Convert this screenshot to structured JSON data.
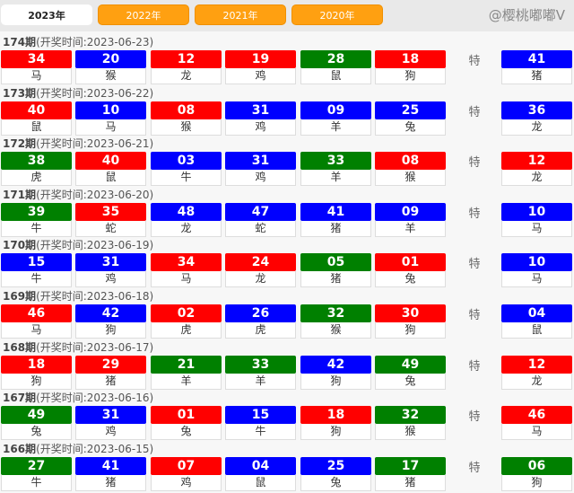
{
  "tabs": [
    "2023年",
    "2022年",
    "2021年",
    "2020年"
  ],
  "active_tab": 0,
  "colors": {
    "red": "#ff0000",
    "blue": "#0000ff",
    "green": "#008000",
    "tab": "#ffa011"
  },
  "special_label": "特",
  "watermark": "@樱桃嘟嘟V",
  "draws": [
    {
      "issue": "174期",
      "time": "(开奖时间:2023-06-23)",
      "balls": [
        [
          "34",
          "red",
          "马"
        ],
        [
          "20",
          "blue",
          "猴"
        ],
        [
          "12",
          "red",
          "龙"
        ],
        [
          "19",
          "red",
          "鸡"
        ],
        [
          "28",
          "green",
          "鼠"
        ],
        [
          "18",
          "red",
          "狗"
        ]
      ],
      "special": [
        "41",
        "blue",
        "猪"
      ]
    },
    {
      "issue": "173期",
      "time": "(开奖时间:2023-06-22)",
      "balls": [
        [
          "40",
          "red",
          "鼠"
        ],
        [
          "10",
          "blue",
          "马"
        ],
        [
          "08",
          "red",
          "猴"
        ],
        [
          "31",
          "blue",
          "鸡"
        ],
        [
          "09",
          "blue",
          "羊"
        ],
        [
          "25",
          "blue",
          "兔"
        ]
      ],
      "special": [
        "36",
        "blue",
        "龙"
      ]
    },
    {
      "issue": "172期",
      "time": "(开奖时间:2023-06-21)",
      "balls": [
        [
          "38",
          "green",
          "虎"
        ],
        [
          "40",
          "red",
          "鼠"
        ],
        [
          "03",
          "blue",
          "牛"
        ],
        [
          "31",
          "blue",
          "鸡"
        ],
        [
          "33",
          "green",
          "羊"
        ],
        [
          "08",
          "red",
          "猴"
        ]
      ],
      "special": [
        "12",
        "red",
        "龙"
      ]
    },
    {
      "issue": "171期",
      "time": "(开奖时间:2023-06-20)",
      "balls": [
        [
          "39",
          "green",
          "牛"
        ],
        [
          "35",
          "red",
          "蛇"
        ],
        [
          "48",
          "blue",
          "龙"
        ],
        [
          "47",
          "blue",
          "蛇"
        ],
        [
          "41",
          "blue",
          "猪"
        ],
        [
          "09",
          "blue",
          "羊"
        ]
      ],
      "special": [
        "10",
        "blue",
        "马"
      ]
    },
    {
      "issue": "170期",
      "time": "(开奖时间:2023-06-19)",
      "balls": [
        [
          "15",
          "blue",
          "牛"
        ],
        [
          "31",
          "blue",
          "鸡"
        ],
        [
          "34",
          "red",
          "马"
        ],
        [
          "24",
          "red",
          "龙"
        ],
        [
          "05",
          "green",
          "猪"
        ],
        [
          "01",
          "red",
          "兔"
        ]
      ],
      "special": [
        "10",
        "blue",
        "马"
      ]
    },
    {
      "issue": "169期",
      "time": "(开奖时间:2023-06-18)",
      "balls": [
        [
          "46",
          "red",
          "马"
        ],
        [
          "42",
          "blue",
          "狗"
        ],
        [
          "02",
          "red",
          "虎"
        ],
        [
          "26",
          "blue",
          "虎"
        ],
        [
          "32",
          "green",
          "猴"
        ],
        [
          "30",
          "red",
          "狗"
        ]
      ],
      "special": [
        "04",
        "blue",
        "鼠"
      ]
    },
    {
      "issue": "168期",
      "time": "(开奖时间:2023-06-17)",
      "balls": [
        [
          "18",
          "red",
          "狗"
        ],
        [
          "29",
          "red",
          "猪"
        ],
        [
          "21",
          "green",
          "羊"
        ],
        [
          "33",
          "green",
          "羊"
        ],
        [
          "42",
          "blue",
          "狗"
        ],
        [
          "49",
          "green",
          "兔"
        ]
      ],
      "special": [
        "12",
        "red",
        "龙"
      ]
    },
    {
      "issue": "167期",
      "time": "(开奖时间:2023-06-16)",
      "balls": [
        [
          "49",
          "green",
          "兔"
        ],
        [
          "31",
          "blue",
          "鸡"
        ],
        [
          "01",
          "red",
          "兔"
        ],
        [
          "15",
          "blue",
          "牛"
        ],
        [
          "18",
          "red",
          "狗"
        ],
        [
          "32",
          "green",
          "猴"
        ]
      ],
      "special": [
        "46",
        "red",
        "马"
      ]
    },
    {
      "issue": "166期",
      "time": "(开奖时间:2023-06-15)",
      "balls": [
        [
          "27",
          "green",
          "牛"
        ],
        [
          "41",
          "blue",
          "猪"
        ],
        [
          "07",
          "red",
          "鸡"
        ],
        [
          "04",
          "blue",
          "鼠"
        ],
        [
          "25",
          "blue",
          "兔"
        ],
        [
          "17",
          "green",
          "猪"
        ]
      ],
      "special": [
        "06",
        "green",
        "狗"
      ]
    }
  ]
}
